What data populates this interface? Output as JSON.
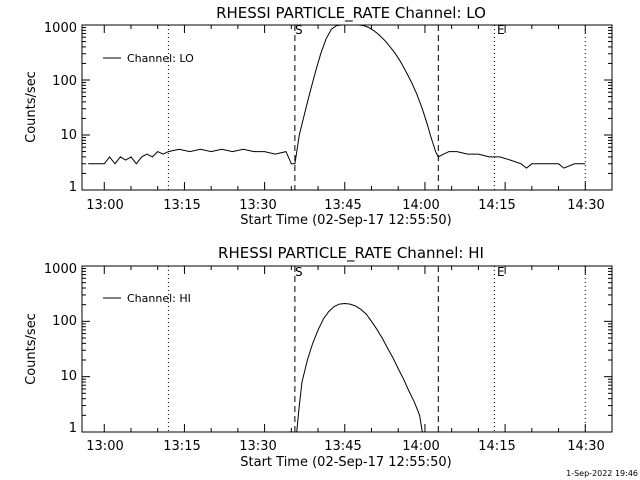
{
  "footer": {
    "timestamp": "1-Sep-2022 19:46"
  },
  "chart_data": [
    {
      "type": "line",
      "title": "RHESSI PARTICLE_RATE Channel: LO",
      "xlabel": "Start Time (02-Sep-17 12:55:50)",
      "ylabel": "Counts/sec",
      "yscale": "log",
      "xlim": [
        "12:55:50",
        "14:35:00"
      ],
      "ylim": [
        1,
        1000
      ],
      "x_ticks": [
        "13:00",
        "13:15",
        "13:30",
        "13:45",
        "14:00",
        "14:15",
        "14:30"
      ],
      "y_ticks": [
        "1",
        "10",
        "100",
        "1000"
      ],
      "markers": [
        {
          "label": "S",
          "time": "13:35:40",
          "style": "dashed"
        },
        {
          "label": "",
          "time": "14:02:30",
          "style": "dashed"
        },
        {
          "label": "E",
          "time": "14:13:00",
          "style": "dotted"
        },
        {
          "label": "",
          "time": "13:12:00",
          "style": "dotted"
        },
        {
          "label": "",
          "time": "14:30:00",
          "style": "dotted"
        }
      ],
      "legend": {
        "position": "top-left",
        "entries": [
          "Channel: LO"
        ]
      },
      "series": [
        {
          "name": "Channel: LO",
          "x": [
            "12:57:00",
            "12:59:00",
            "13:00:00",
            "13:01:00",
            "13:02:00",
            "13:03:00",
            "13:04:00",
            "13:05:00",
            "13:06:00",
            "13:07:00",
            "13:08:00",
            "13:09:00",
            "13:10:00",
            "13:11:00",
            "13:12:00",
            "13:14:00",
            "13:16:00",
            "13:18:00",
            "13:20:00",
            "13:22:00",
            "13:24:00",
            "13:26:00",
            "13:28:00",
            "13:30:00",
            "13:32:00",
            "13:34:00",
            "13:35:00",
            "13:35:40",
            "13:36:30",
            "13:37:30",
            "13:38:30",
            "13:39:30",
            "13:40:30",
            "13:41:30",
            "13:42:30",
            "13:43:30",
            "13:44:30",
            "13:45:30",
            "13:46:30",
            "13:47:30",
            "13:48:30",
            "13:49:30",
            "13:50:30",
            "13:51:30",
            "13:52:30",
            "13:53:30",
            "13:54:30",
            "13:55:30",
            "13:56:30",
            "13:57:30",
            "13:58:30",
            "13:59:30",
            "14:00:30",
            "14:01:00",
            "14:01:30",
            "14:02:00",
            "14:02:30",
            "14:03:30",
            "14:04:30",
            "14:06:00",
            "14:08:00",
            "14:10:00",
            "14:12:00",
            "14:14:00",
            "14:16:00",
            "14:18:00",
            "14:19:00",
            "14:20:00",
            "14:22:00",
            "14:25:00",
            "14:26:00",
            "14:28:00",
            "14:30:00"
          ],
          "y": [
            3,
            3,
            3,
            4,
            3,
            4,
            3.5,
            4,
            3,
            4,
            4.5,
            4,
            5,
            4.5,
            5,
            5.5,
            5,
            5.5,
            5,
            5.5,
            5,
            5.5,
            5,
            5,
            4.5,
            5,
            3,
            3,
            10,
            25,
            60,
            140,
            300,
            560,
            840,
            980,
            1000,
            1000,
            1000,
            1000,
            980,
            900,
            780,
            650,
            520,
            400,
            300,
            210,
            140,
            90,
            55,
            30,
            15,
            10,
            7,
            5,
            4,
            4.5,
            5,
            5,
            4.5,
            4.5,
            4,
            4,
            3.5,
            3,
            2.5,
            3,
            3,
            3,
            2.5,
            3,
            3
          ]
        }
      ]
    },
    {
      "type": "line",
      "title": "RHESSI PARTICLE_RATE Channel: HI",
      "xlabel": "Start Time (02-Sep-17 12:55:50)",
      "ylabel": "Counts/sec",
      "yscale": "log",
      "xlim": [
        "12:55:50",
        "14:35:00"
      ],
      "ylim": [
        1,
        1000
      ],
      "x_ticks": [
        "13:00",
        "13:15",
        "13:30",
        "13:45",
        "14:00",
        "14:15",
        "14:30"
      ],
      "y_ticks": [
        "1",
        "10",
        "100",
        "1000"
      ],
      "markers": [
        {
          "label": "S",
          "time": "13:35:40",
          "style": "dashed"
        },
        {
          "label": "",
          "time": "14:02:30",
          "style": "dashed"
        },
        {
          "label": "E",
          "time": "14:13:00",
          "style": "dotted"
        },
        {
          "label": "",
          "time": "13:12:00",
          "style": "dotted"
        },
        {
          "label": "",
          "time": "14:30:00",
          "style": "dotted"
        }
      ],
      "legend": {
        "position": "top-left",
        "entries": [
          "Channel: HI"
        ]
      },
      "series": [
        {
          "name": "Channel: HI",
          "x": [
            "13:36:00",
            "13:36:30",
            "13:37:00",
            "13:38:00",
            "13:39:00",
            "13:40:00",
            "13:41:00",
            "13:42:00",
            "13:43:00",
            "13:44:00",
            "13:45:00",
            "13:46:00",
            "13:47:00",
            "13:48:00",
            "13:49:00",
            "13:50:00",
            "13:51:00",
            "13:52:00",
            "13:53:00",
            "13:54:00",
            "13:55:00",
            "13:56:00",
            "13:57:00",
            "13:58:00",
            "13:59:00",
            "13:59:30"
          ],
          "y": [
            1,
            3,
            8,
            20,
            40,
            70,
            110,
            150,
            185,
            205,
            210,
            205,
            190,
            165,
            135,
            100,
            72,
            50,
            33,
            22,
            14,
            9,
            5.5,
            3.5,
            2,
            1
          ]
        }
      ]
    }
  ]
}
